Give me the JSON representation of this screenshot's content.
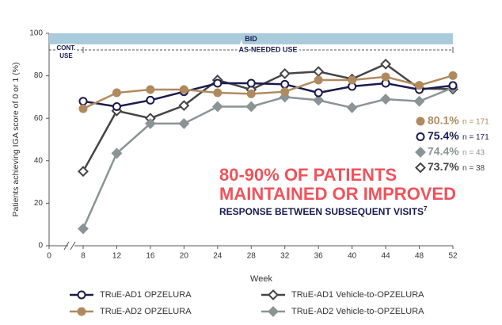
{
  "chart_data": {
    "type": "line",
    "y_label": "Patients achieving IGA score of 0 or 1 (%)",
    "x_label": "Week",
    "x": [
      8,
      12,
      16,
      20,
      24,
      28,
      32,
      36,
      40,
      44,
      48,
      52
    ],
    "xlim": [
      0,
      52
    ],
    "xticks": [
      0,
      8,
      12,
      16,
      20,
      24,
      28,
      32,
      36,
      40,
      44,
      48,
      52
    ],
    "ylim": [
      0,
      100
    ],
    "yticks": [
      0,
      20,
      40,
      60,
      80,
      100
    ],
    "phases": {
      "band": "BID",
      "cont": [
        "CONT.",
        "USE"
      ],
      "as_needed": "AS-NEEDED USE"
    },
    "headline": {
      "line1": "80-90% OF PATIENTS",
      "line2": "MAINTAINED OR IMPROVED",
      "line3": "RESPONSE BETWEEN SUBSEQUENT VISITS",
      "sup": "7"
    },
    "series": [
      {
        "name": "TRuE-AD2 OPZELURA",
        "color": "#b08a5e",
        "marker": "circle",
        "filled": true,
        "values": [
          64.5,
          72,
          73.5,
          73.5,
          72,
          71.5,
          72.5,
          78,
          78,
          79.5,
          75.5,
          80.1
        ],
        "end_label": "80.1%",
        "n_label": "n = 171"
      },
      {
        "name": "TRuE-AD1 OPZELURA",
        "color": "#1b1a4d",
        "marker": "circle",
        "filled": false,
        "values": [
          68,
          65.5,
          68.5,
          72.5,
          76.5,
          76.5,
          76,
          72,
          75,
          76.5,
          73.5,
          75.4
        ],
        "end_label": "75.4%",
        "n_label": "n = 171"
      },
      {
        "name": "TRuE-AD2 Vehicle-to-OPZELURA",
        "color": "#8a9494",
        "marker": "diamond",
        "filled": true,
        "values": [
          8,
          43.5,
          57.5,
          57.5,
          65.5,
          65.5,
          70,
          68.5,
          65,
          69,
          68,
          74.4
        ],
        "end_label": "74.4%",
        "n_label": "n = 43"
      },
      {
        "name": "TRuE-AD1 Vehicle-to-OPZELURA",
        "color": "#444444",
        "marker": "diamond",
        "filled": false,
        "values": [
          35,
          63.5,
          60,
          66,
          78,
          73.5,
          81,
          82,
          78.5,
          85.5,
          74,
          73.7
        ],
        "end_label": "73.7%",
        "n_label": "n = 38"
      }
    ]
  }
}
